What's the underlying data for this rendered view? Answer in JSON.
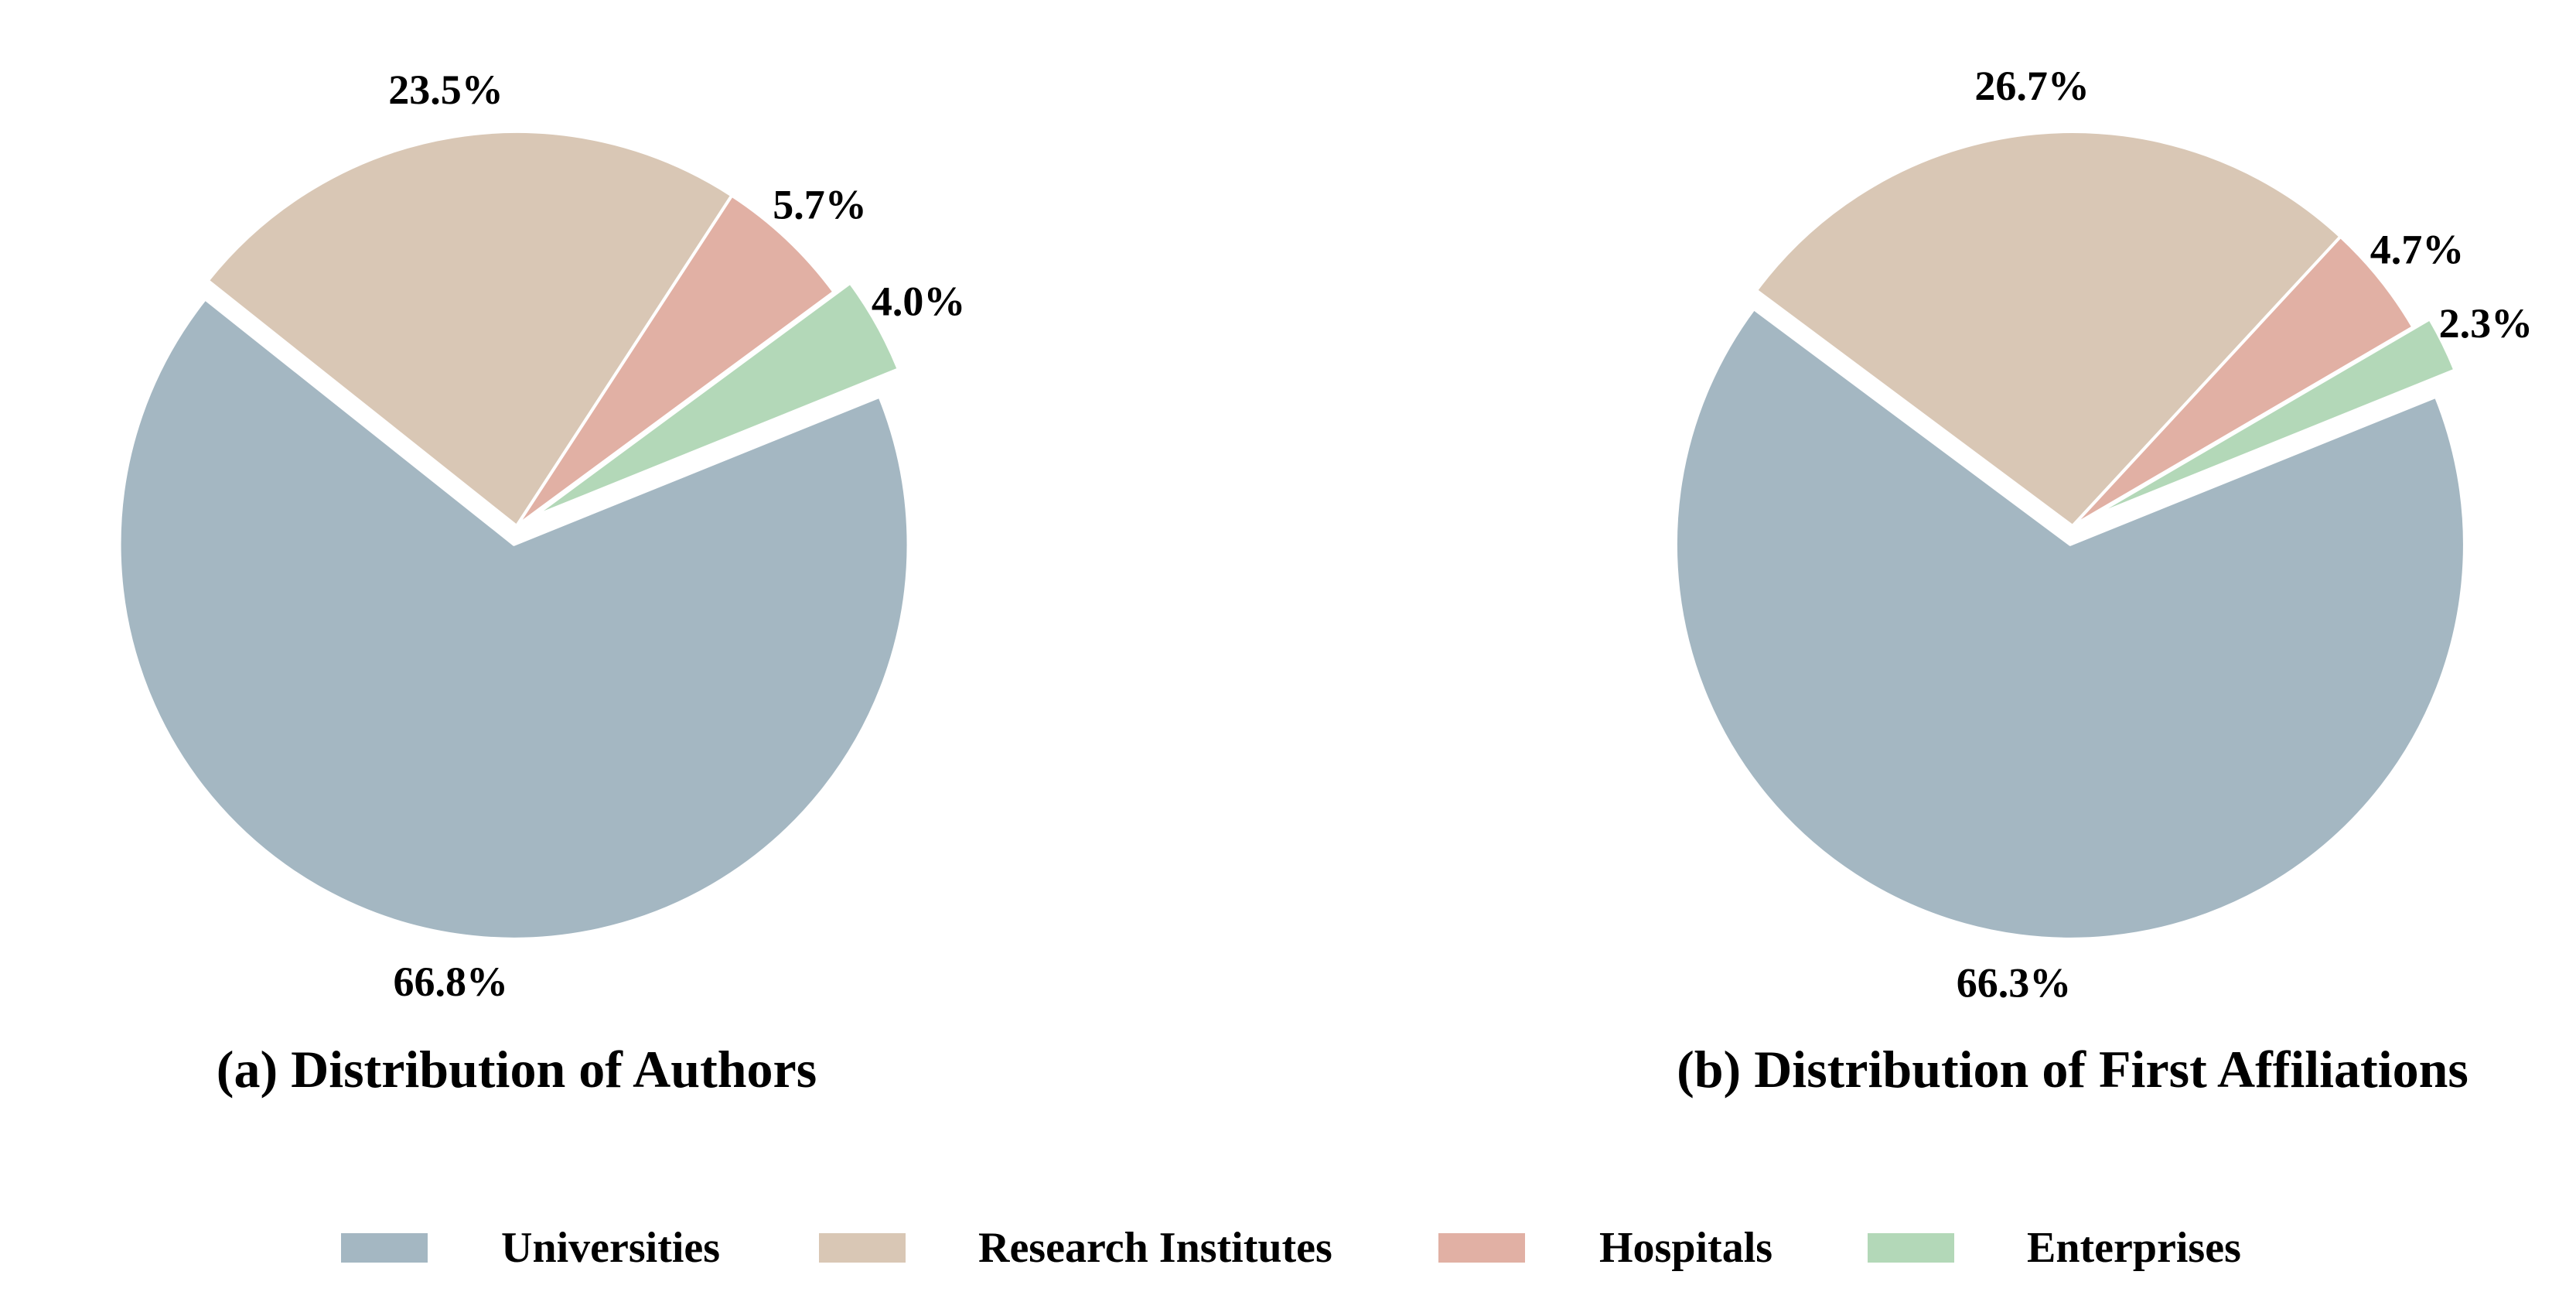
{
  "chart_data": [
    {
      "type": "pie",
      "title": "(a) Distribution of Authors",
      "categories": [
        "Universities",
        "Research Institutes",
        "Hospitals",
        "Enterprises"
      ],
      "values": [
        66.8,
        23.5,
        5.7,
        4.0
      ],
      "labels": [
        "66.8%",
        "23.5%",
        "5.7%",
        "4.0%"
      ],
      "exploded": [
        "Universities",
        "Enterprises"
      ]
    },
    {
      "type": "pie",
      "title": "(b) Distribution of First Affiliations",
      "categories": [
        "Universities",
        "Research Institutes",
        "Hospitals",
        "Enterprises"
      ],
      "values": [
        66.3,
        26.7,
        4.7,
        2.3
      ],
      "labels": [
        "66.3%",
        "26.7%",
        "4.7%",
        "2.3%"
      ],
      "exploded": [
        "Universities",
        "Enterprises"
      ]
    }
  ],
  "legend": {
    "placement": "bottom-center",
    "items": [
      {
        "label": "Universities",
        "color": "#a4b7c2"
      },
      {
        "label": "Research Institutes",
        "color": "#d9c7b5"
      },
      {
        "label": "Hospitals",
        "color": "#e1b0a4"
      },
      {
        "label": "Enterprises",
        "color": "#b3d8b8"
      }
    ]
  }
}
